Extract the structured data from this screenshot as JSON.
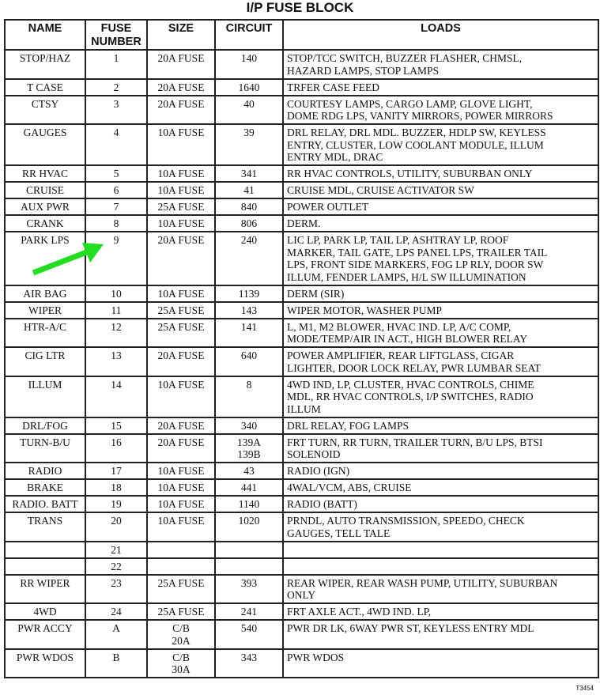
{
  "title": "I/P FUSE BLOCK",
  "headers": {
    "name": "NAME",
    "fuse_number": "FUSE NUMBER",
    "size": "SIZE",
    "circuit": "CIRCUIT",
    "loads": "LOADS"
  },
  "rows": [
    {
      "name": "STOP/HAZ",
      "fuse": "1",
      "size": [
        "20A FUSE"
      ],
      "circuit": [
        "140"
      ],
      "loads": [
        "STOP/TCC SWITCH, BUZZER FLASHER, CHMSL,",
        "HAZARD LAMPS, STOP LAMPS"
      ]
    },
    {
      "name": "T CASE",
      "fuse": "2",
      "size": [
        "20A FUSE"
      ],
      "circuit": [
        "1640"
      ],
      "loads": [
        "TRFER CASE FEED"
      ]
    },
    {
      "name": "CTSY",
      "fuse": "3",
      "size": [
        "20A FUSE"
      ],
      "circuit": [
        "40"
      ],
      "loads": [
        "COURTESY LAMPS, CARGO LAMP, GLOVE LIGHT,",
        "DOME RDG LPS, VANITY MIRRORS, POWER MIRRORS"
      ]
    },
    {
      "name": "GAUGES",
      "fuse": "4",
      "size": [
        "10A FUSE"
      ],
      "circuit": [
        "39"
      ],
      "loads": [
        "DRL RELAY, DRL MDL. BUZZER, HDLP SW, KEYLESS",
        "ENTRY, CLUSTER, LOW COOLANT MODULE, ILLUM",
        "ENTRY MDL, DRAC"
      ]
    },
    {
      "name": "RR HVAC",
      "fuse": "5",
      "size": [
        "10A FUSE"
      ],
      "circuit": [
        "341"
      ],
      "loads": [
        "RR HVAC CONTROLS, UTILITY, SUBURBAN ONLY"
      ]
    },
    {
      "name": "CRUISE",
      "fuse": "6",
      "size": [
        "10A FUSE"
      ],
      "circuit": [
        "41"
      ],
      "loads": [
        "CRUISE MDL, CRUISE ACTIVATOR SW"
      ]
    },
    {
      "name": "AUX PWR",
      "fuse": "7",
      "size": [
        "25A FUSE"
      ],
      "circuit": [
        "840"
      ],
      "loads": [
        "POWER OUTLET"
      ]
    },
    {
      "name": "CRANK",
      "fuse": "8",
      "size": [
        "10A FUSE"
      ],
      "circuit": [
        "806"
      ],
      "loads": [
        "DERM."
      ]
    },
    {
      "name": "PARK LPS",
      "fuse": "9",
      "size": [
        "20A FUSE"
      ],
      "circuit": [
        "240"
      ],
      "loads": [
        "LIC LP, PARK LP, TAIL LP, ASHTRAY LP, ROOF",
        "MARKER, TAIL GATE, LPS PANEL LPS, TRAILER TAIL",
        "LPS, FRONT SIDE MARKERS, FOG LP RLY, DOOR SW",
        "ILLUM, FENDER LAMPS, H/L SW ILLUMINATION"
      ]
    },
    {
      "name": "AIR BAG",
      "fuse": "10",
      "size": [
        "10A FUSE"
      ],
      "circuit": [
        "1139"
      ],
      "loads": [
        "DERM (SIR)"
      ]
    },
    {
      "name": "WIPER",
      "fuse": "11",
      "size": [
        "25A FUSE"
      ],
      "circuit": [
        "143"
      ],
      "loads": [
        "WIPER MOTOR, WASHER PUMP"
      ]
    },
    {
      "name": "HTR-A/C",
      "fuse": "12",
      "size": [
        "25A FUSE"
      ],
      "circuit": [
        "141"
      ],
      "loads": [
        "L, M1, M2 BLOWER, HVAC IND. LP, A/C COMP,",
        "MODE/TEMP/AIR IN ACT., HIGH BLOWER RELAY"
      ]
    },
    {
      "name": "CIG LTR",
      "fuse": "13",
      "size": [
        "20A FUSE"
      ],
      "circuit": [
        "640"
      ],
      "loads": [
        "POWER AMPLIFIER, REAR LIFTGLASS, CIGAR",
        "LIGHTER, DOOR LOCK RELAY, PWR LUMBAR SEAT"
      ]
    },
    {
      "name": "ILLUM",
      "fuse": "14",
      "size": [
        "10A FUSE"
      ],
      "circuit": [
        "8"
      ],
      "loads": [
        "4WD IND, LP, CLUSTER, HVAC CONTROLS, CHIME",
        "MDL, RR HVAC CONTROLS, I/P SWITCHES, RADIO",
        "ILLUM"
      ]
    },
    {
      "name": "DRL/FOG",
      "fuse": "15",
      "size": [
        "20A FUSE"
      ],
      "circuit": [
        "340"
      ],
      "loads": [
        "DRL RELAY, FOG LAMPS"
      ]
    },
    {
      "name": "TURN-B/U",
      "fuse": "16",
      "size": [
        "20A FUSE"
      ],
      "circuit": [
        "139A",
        "139B"
      ],
      "loads": [
        "FRT TURN, RR TURN, TRAILER TURN, B/U LPS, BTSI",
        "SOLENOID"
      ]
    },
    {
      "name": "RADIO",
      "fuse": "17",
      "size": [
        "10A FUSE"
      ],
      "circuit": [
        "43"
      ],
      "loads": [
        "RADIO (IGN)"
      ]
    },
    {
      "name": "BRAKE",
      "fuse": "18",
      "size": [
        "10A FUSE"
      ],
      "circuit": [
        "441"
      ],
      "loads": [
        "4WAL/VCM, ABS, CRUISE"
      ]
    },
    {
      "name": "RADIO. BATT",
      "fuse": "19",
      "size": [
        "10A FUSE"
      ],
      "circuit": [
        "1140"
      ],
      "loads": [
        "RADIO (BATT)"
      ]
    },
    {
      "name": "TRANS",
      "fuse": "20",
      "size": [
        "10A FUSE"
      ],
      "circuit": [
        "1020"
      ],
      "loads": [
        "PRNDL, AUTO TRANSMISSION, SPEEDO, CHECK",
        "GAUGES, TELL TALE"
      ]
    },
    {
      "name": "",
      "fuse": "21",
      "size": [],
      "circuit": [],
      "loads": []
    },
    {
      "name": "",
      "fuse": "22",
      "size": [],
      "circuit": [],
      "loads": []
    },
    {
      "name": "RR WIPER",
      "fuse": "23",
      "size": [
        "25A FUSE"
      ],
      "circuit": [
        "393"
      ],
      "loads": [
        "REAR WIPER, REAR WASH PUMP, UTILITY, SUBURBAN",
        "ONLY"
      ]
    },
    {
      "name": "4WD",
      "fuse": "24",
      "size": [
        "25A FUSE"
      ],
      "circuit": [
        "241"
      ],
      "loads": [
        "FRT AXLE ACT., 4WD IND. LP,"
      ]
    },
    {
      "name": "PWR ACCY",
      "fuse": "A",
      "size": [
        "C/B",
        "20A"
      ],
      "circuit": [
        "540"
      ],
      "loads": [
        "PWR DR LK, 6WAY PWR ST, KEYLESS ENTRY MDL"
      ]
    },
    {
      "name": "PWR WDOS",
      "fuse": "B",
      "size": [
        "C/B",
        "30A"
      ],
      "circuit": [
        "343"
      ],
      "loads": [
        "PWR WDOS"
      ]
    }
  ],
  "highlight": {
    "row_fuse": "9",
    "arrow_color": "#22dd22",
    "icon": "arrow-icon"
  },
  "figure_code": "T3454"
}
